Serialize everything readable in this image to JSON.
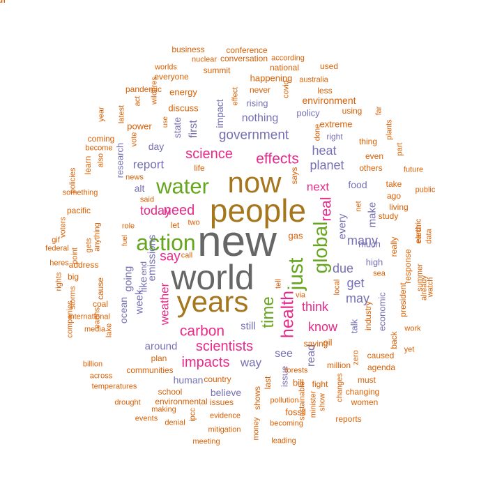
{
  "palette": {
    "orange": "#d95f02",
    "purple": "#7570b3",
    "magenta": "#e7298a",
    "green": "#66a61e",
    "gold": "#a6761d",
    "gray": "#666666"
  },
  "words": [
    {
      "text": "new",
      "color": "gray"
    },
    {
      "text": "world",
      "color": "gray"
    },
    {
      "text": "people",
      "color": "gold"
    },
    {
      "text": "now",
      "color": "gold"
    },
    {
      "text": "years",
      "color": "gold"
    },
    {
      "text": "action",
      "color": "green"
    },
    {
      "text": "water",
      "color": "green"
    },
    {
      "text": "just",
      "color": "green"
    },
    {
      "text": "global",
      "color": "green"
    },
    {
      "text": "time",
      "color": "green"
    },
    {
      "text": "health",
      "color": "magenta"
    },
    {
      "text": "real",
      "color": "magenta"
    },
    {
      "text": "effects",
      "color": "magenta"
    },
    {
      "text": "carbon",
      "color": "magenta"
    },
    {
      "text": "impacts",
      "color": "magenta"
    },
    {
      "text": "scientists",
      "color": "magenta"
    },
    {
      "text": "science",
      "color": "magenta"
    },
    {
      "text": "need",
      "color": "magenta"
    },
    {
      "text": "think",
      "color": "magenta"
    },
    {
      "text": "weather",
      "color": "magenta"
    },
    {
      "text": "today",
      "color": "magenta"
    },
    {
      "text": "say",
      "color": "magenta"
    },
    {
      "text": "know",
      "color": "magenta"
    },
    {
      "text": "next",
      "color": "magenta"
    },
    {
      "text": "read",
      "color": "purple"
    },
    {
      "text": "government",
      "color": "purple"
    },
    {
      "text": "planet",
      "color": "purple"
    },
    {
      "text": "heat",
      "color": "purple"
    },
    {
      "text": "many",
      "color": "purple"
    },
    {
      "text": "due",
      "color": "purple"
    },
    {
      "text": "get",
      "color": "purple"
    },
    {
      "text": "may",
      "color": "purple"
    },
    {
      "text": "see",
      "color": "purple"
    },
    {
      "text": "way",
      "color": "purple"
    },
    {
      "text": "still",
      "color": "purple"
    },
    {
      "text": "around",
      "color": "purple"
    },
    {
      "text": "human",
      "color": "purple"
    },
    {
      "text": "believe",
      "color": "purple"
    },
    {
      "text": "report",
      "color": "purple"
    },
    {
      "text": "nothing",
      "color": "purple"
    },
    {
      "text": "every",
      "color": "purple"
    },
    {
      "text": "make",
      "color": "purple"
    },
    {
      "text": "food",
      "color": "purple"
    },
    {
      "text": "emissions",
      "color": "purple"
    },
    {
      "text": "going",
      "color": "purple"
    },
    {
      "text": "week",
      "color": "purple"
    },
    {
      "text": "ocean",
      "color": "purple"
    },
    {
      "text": "like",
      "color": "purple"
    },
    {
      "text": "end",
      "color": "purple"
    },
    {
      "text": "day",
      "color": "purple"
    },
    {
      "text": "alt",
      "color": "purple"
    },
    {
      "text": "first",
      "color": "purple"
    },
    {
      "text": "state",
      "color": "purple"
    },
    {
      "text": "impact",
      "color": "purple"
    },
    {
      "text": "rising",
      "color": "purple"
    },
    {
      "text": "policy",
      "color": "purple"
    },
    {
      "text": "right",
      "color": "purple"
    },
    {
      "text": "high",
      "color": "purple"
    },
    {
      "text": "talk",
      "color": "purple"
    },
    {
      "text": "economic",
      "color": "purple"
    },
    {
      "text": "much",
      "color": "purple"
    },
    {
      "text": "issue",
      "color": "purple"
    },
    {
      "text": "research",
      "color": "purple"
    },
    {
      "text": "oil",
      "color": "orange"
    },
    {
      "text": "gas",
      "color": "orange"
    },
    {
      "text": "bill",
      "color": "orange"
    },
    {
      "text": "last",
      "color": "orange"
    },
    {
      "text": "fossil",
      "color": "orange"
    },
    {
      "text": "environment",
      "color": "orange"
    },
    {
      "text": "extreme",
      "color": "orange"
    },
    {
      "text": "energy",
      "color": "orange"
    },
    {
      "text": "discuss",
      "color": "orange"
    },
    {
      "text": "power",
      "color": "orange"
    },
    {
      "text": "never",
      "color": "orange"
    },
    {
      "text": "happening",
      "color": "orange"
    },
    {
      "text": "plan",
      "color": "orange"
    },
    {
      "text": "communities",
      "color": "orange"
    },
    {
      "text": "school",
      "color": "orange"
    },
    {
      "text": "environmental",
      "color": "orange"
    },
    {
      "text": "issues",
      "color": "orange"
    },
    {
      "text": "country",
      "color": "orange"
    },
    {
      "text": "let",
      "color": "orange"
    },
    {
      "text": "life",
      "color": "orange"
    },
    {
      "text": "even",
      "color": "orange"
    },
    {
      "text": "others",
      "color": "orange"
    },
    {
      "text": "study",
      "color": "orange"
    },
    {
      "text": "ago",
      "color": "orange"
    },
    {
      "text": "take",
      "color": "orange"
    },
    {
      "text": "living",
      "color": "orange"
    },
    {
      "text": "industry",
      "color": "orange"
    },
    {
      "text": "back",
      "color": "orange"
    },
    {
      "text": "president",
      "color": "orange"
    },
    {
      "text": "response",
      "color": "orange"
    },
    {
      "text": "really",
      "color": "orange"
    },
    {
      "text": "earth",
      "color": "orange"
    },
    {
      "text": "zero",
      "color": "orange"
    },
    {
      "text": "million",
      "color": "orange"
    },
    {
      "text": "fight",
      "color": "orange"
    },
    {
      "text": "must",
      "color": "orange"
    },
    {
      "text": "changing",
      "color": "orange"
    },
    {
      "text": "women",
      "color": "orange"
    },
    {
      "text": "reports",
      "color": "orange"
    },
    {
      "text": "agenda",
      "color": "orange"
    },
    {
      "text": "caused",
      "color": "orange"
    },
    {
      "text": "saying",
      "color": "orange"
    },
    {
      "text": "says",
      "color": "orange"
    },
    {
      "text": "also",
      "color": "orange"
    },
    {
      "text": "anything",
      "color": "orange"
    },
    {
      "text": "cause",
      "color": "orange"
    },
    {
      "text": "address",
      "color": "orange"
    },
    {
      "text": "big",
      "color": "orange"
    },
    {
      "text": "coal",
      "color": "orange"
    },
    {
      "text": "earths",
      "color": "orange"
    },
    {
      "text": "lake",
      "color": "orange"
    },
    {
      "text": "shows",
      "color": "orange"
    },
    {
      "text": "pollution",
      "color": "orange"
    },
    {
      "text": "thing",
      "color": "orange"
    },
    {
      "text": "using",
      "color": "orange"
    },
    {
      "text": "done",
      "color": "orange"
    },
    {
      "text": "less",
      "color": "orange"
    },
    {
      "text": "australia",
      "color": "orange"
    },
    {
      "text": "used",
      "color": "orange"
    },
    {
      "text": "according",
      "color": "orange"
    },
    {
      "text": "national",
      "color": "orange"
    },
    {
      "text": "conference",
      "color": "orange"
    },
    {
      "text": "business",
      "color": "orange"
    },
    {
      "text": "conversation",
      "color": "orange"
    },
    {
      "text": "nuclear",
      "color": "orange"
    },
    {
      "text": "worlds",
      "color": "orange"
    },
    {
      "text": "summit",
      "color": "orange"
    },
    {
      "text": "everyone",
      "color": "orange"
    },
    {
      "text": "pandemic",
      "color": "orange"
    },
    {
      "text": "wildfires",
      "color": "orange"
    },
    {
      "text": "act",
      "color": "orange"
    },
    {
      "text": "latest",
      "color": "orange"
    },
    {
      "text": "year",
      "color": "orange"
    },
    {
      "text": "coming",
      "color": "orange"
    },
    {
      "text": "become",
      "color": "orange"
    },
    {
      "text": "vote",
      "color": "orange"
    },
    {
      "text": "use",
      "color": "orange"
    },
    {
      "text": "effect",
      "color": "orange"
    },
    {
      "text": "covid",
      "color": "orange"
    },
    {
      "text": "news",
      "color": "orange"
    },
    {
      "text": "said",
      "color": "orange"
    },
    {
      "text": "role",
      "color": "orange"
    },
    {
      "text": "fuel",
      "color": "orange"
    },
    {
      "text": "two",
      "color": "orange"
    },
    {
      "text": "call",
      "color": "orange"
    },
    {
      "text": "learn",
      "color": "orange"
    },
    {
      "text": "policies",
      "color": "orange"
    },
    {
      "text": "pacific",
      "color": "orange"
    },
    {
      "text": "something",
      "color": "orange"
    },
    {
      "text": "gif",
      "color": "orange"
    },
    {
      "text": "voters",
      "color": "orange"
    },
    {
      "text": "gets",
      "color": "orange"
    },
    {
      "text": "federal",
      "color": "orange"
    },
    {
      "text": "point",
      "color": "orange"
    },
    {
      "text": "heres",
      "color": "orange"
    },
    {
      "text": "rights",
      "color": "orange"
    },
    {
      "text": "storms",
      "color": "orange"
    },
    {
      "text": "companies",
      "color": "orange"
    },
    {
      "text": "international",
      "color": "orange"
    },
    {
      "text": "media",
      "color": "orange"
    },
    {
      "text": "billion",
      "color": "orange"
    },
    {
      "text": "across",
      "color": "orange"
    },
    {
      "text": "temperatures",
      "color": "orange"
    },
    {
      "text": "drought",
      "color": "orange"
    },
    {
      "text": "making",
      "color": "orange"
    },
    {
      "text": "events",
      "color": "orange"
    },
    {
      "text": "denial",
      "color": "orange"
    },
    {
      "text": "ipcc",
      "color": "orange"
    },
    {
      "text": "meeting",
      "color": "orange"
    },
    {
      "text": "mitigation",
      "color": "orange"
    },
    {
      "text": "evidence",
      "color": "orange"
    },
    {
      "text": "money",
      "color": "orange"
    },
    {
      "text": "leading",
      "color": "orange"
    },
    {
      "text": "becoming",
      "color": "orange"
    },
    {
      "text": "minister",
      "color": "orange"
    },
    {
      "text": "sustainable",
      "color": "orange"
    },
    {
      "text": "show",
      "color": "orange"
    },
    {
      "text": "changes",
      "color": "orange"
    },
    {
      "text": "forests",
      "color": "orange"
    },
    {
      "text": "via",
      "color": "orange"
    },
    {
      "text": "tell",
      "color": "orange"
    },
    {
      "text": "local",
      "color": "orange"
    },
    {
      "text": "net",
      "color": "orange"
    },
    {
      "text": "sea",
      "color": "orange"
    },
    {
      "text": "far",
      "color": "orange"
    },
    {
      "text": "plants",
      "color": "orange"
    },
    {
      "text": "part",
      "color": "orange"
    },
    {
      "text": "future",
      "color": "orange"
    },
    {
      "text": "public",
      "color": "orange"
    },
    {
      "text": "electric",
      "color": "orange"
    },
    {
      "text": "data",
      "color": "orange"
    },
    {
      "text": "summer",
      "color": "orange"
    },
    {
      "text": "already",
      "color": "orange"
    },
    {
      "text": "watch",
      "color": "orange"
    },
    {
      "text": "work",
      "color": "orange"
    },
    {
      "text": "yet",
      "color": "orange"
    },
    {
      "text": "jul",
      "color": "orange"
    }
  ]
}
